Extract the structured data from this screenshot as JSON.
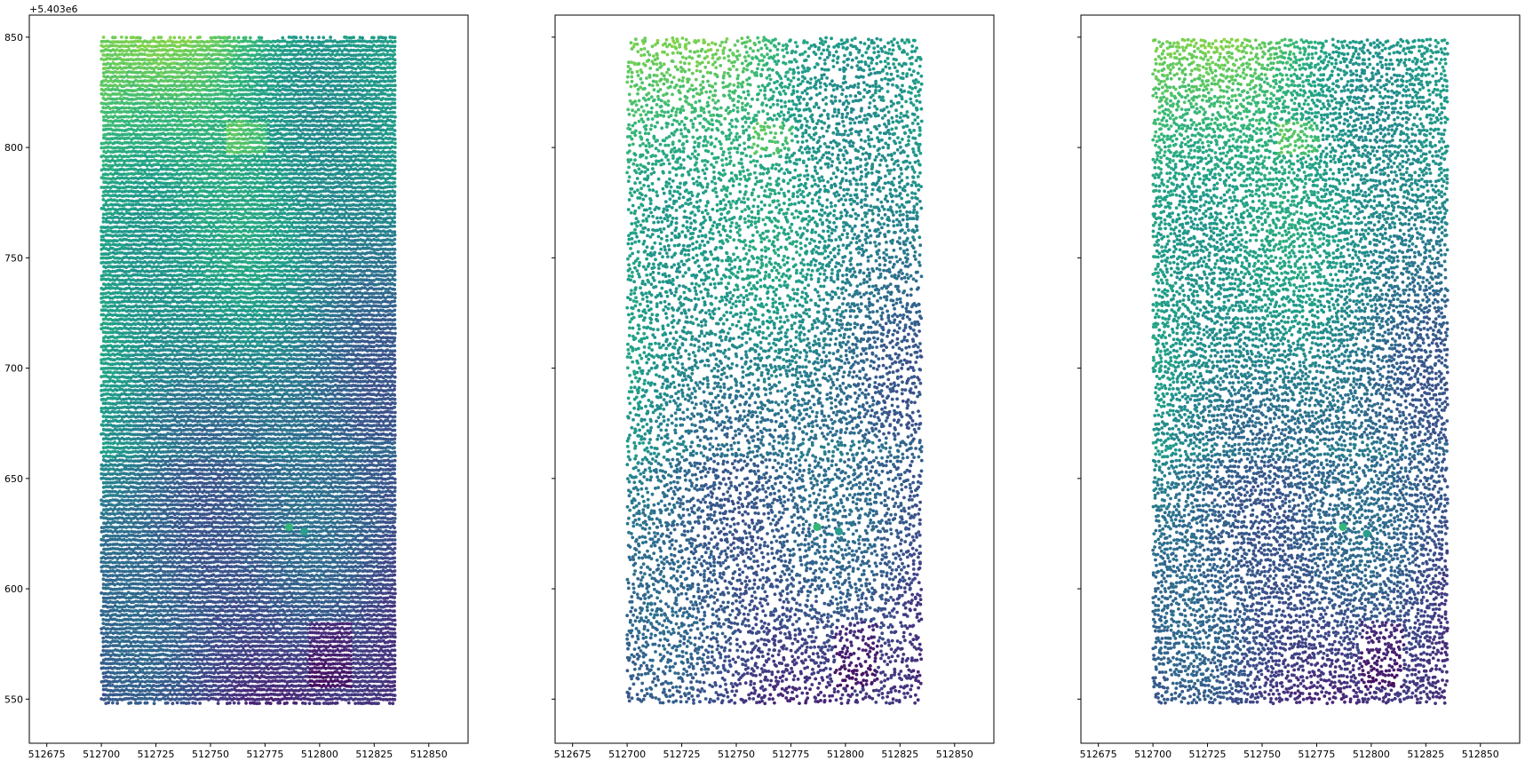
{
  "chart_data": {
    "type": "scatter",
    "y_offset_label": "+5.403e6",
    "x_ticks": [
      512675,
      512700,
      512725,
      512750,
      512775,
      512800,
      512825,
      512850
    ],
    "y_ticks": [
      550,
      600,
      650,
      700,
      750,
      800,
      850
    ],
    "xlim": [
      512667,
      512868
    ],
    "ylim": [
      530,
      860
    ],
    "colormap": "viridis",
    "marker_color_range": [
      "#440154",
      "#fde725"
    ],
    "grid": false,
    "shared_y_axis": true,
    "panels": [
      {
        "name": "panel-1",
        "x_range": [
          512700,
          512835
        ],
        "y_range": [
          548,
          850
        ],
        "point_spacing_x": 1.05,
        "point_spacing_y": 2.0,
        "jitter": 0.18,
        "dropout": 0.0,
        "show_y_tick_labels": true,
        "markers": [
          {
            "x": 512786,
            "y": 628,
            "color": "#35b779"
          },
          {
            "x": 512793,
            "y": 626,
            "color": "#2a9d8f"
          }
        ]
      },
      {
        "name": "panel-2",
        "x_range": [
          512700,
          512835
        ],
        "y_range": [
          548,
          850
        ],
        "point_spacing_x": 1.45,
        "point_spacing_y": 2.6,
        "jitter": 0.55,
        "dropout": 0.22,
        "show_y_tick_labels": false,
        "markers": [
          {
            "x": 512787,
            "y": 628,
            "color": "#35b779"
          },
          {
            "x": 512797,
            "y": 626,
            "color": "#2a9d8f"
          }
        ]
      },
      {
        "name": "panel-3",
        "x_range": [
          512700,
          512835
        ],
        "y_range": [
          548,
          850
        ],
        "point_spacing_x": 1.35,
        "point_spacing_y": 2.5,
        "jitter": 0.4,
        "dropout": 0.15,
        "show_y_tick_labels": false,
        "markers": [
          {
            "x": 512787,
            "y": 628,
            "color": "#35b779"
          },
          {
            "x": 512798,
            "y": 625,
            "color": "#2a9d8f"
          }
        ]
      }
    ]
  }
}
